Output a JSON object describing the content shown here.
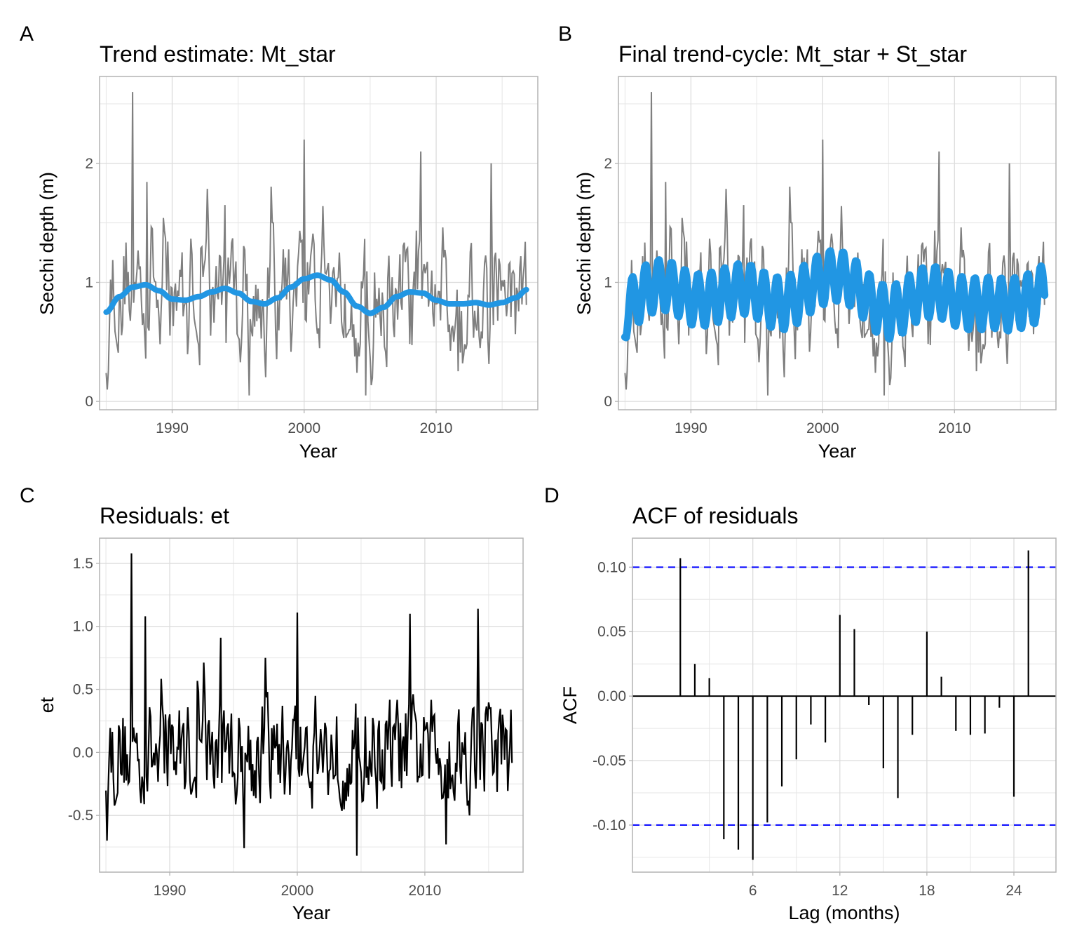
{
  "chart_data": [
    {
      "panel_tag": "A",
      "type": "line",
      "title": "Trend estimate: Mt_star",
      "xlabel": "Year",
      "ylabel": "Secchi depth (m)",
      "xlim": [
        1984.5,
        2017.7
      ],
      "ylim": [
        -0.07,
        2.73
      ],
      "xticks": [
        1990,
        2000,
        2010
      ],
      "xtick_labels": [
        "1990",
        "2000",
        "2010"
      ],
      "yticks": [
        0,
        1,
        2
      ],
      "ytick_labels": [
        "0",
        "1",
        "2"
      ],
      "grid": true,
      "series": [
        {
          "name": "observed",
          "color": "#7f7f7f",
          "x_start": 1985.0,
          "x_end": 2016.9,
          "description": "monthly Secchi depth, range ~0.05 to 2.6"
        },
        {
          "name": "Mt_star",
          "color": "#2196e3",
          "x": [
            1985.0,
            1986.0,
            1987.0,
            1988.0,
            1989.0,
            1990.0,
            1991.0,
            1992.0,
            1993.0,
            1994.0,
            1995.0,
            1996.0,
            1997.0,
            1998.0,
            1999.0,
            2000.0,
            2001.0,
            2002.0,
            2003.0,
            2004.0,
            2005.0,
            2006.0,
            2007.0,
            2008.0,
            2009.0,
            2010.0,
            2011.0,
            2012.0,
            2013.0,
            2014.0,
            2015.0,
            2016.0,
            2016.9
          ],
          "values": [
            0.75,
            0.88,
            0.96,
            0.98,
            0.93,
            0.86,
            0.85,
            0.88,
            0.92,
            0.95,
            0.91,
            0.84,
            0.82,
            0.87,
            0.96,
            1.03,
            1.06,
            1.02,
            0.92,
            0.8,
            0.74,
            0.79,
            0.88,
            0.92,
            0.91,
            0.85,
            0.82,
            0.82,
            0.83,
            0.81,
            0.83,
            0.87,
            0.94
          ]
        }
      ]
    },
    {
      "panel_tag": "B",
      "type": "line",
      "title": "Final trend-cycle: Mt_star + St_star",
      "xlabel": "Year",
      "ylabel": "Secchi depth (m)",
      "xlim": [
        1984.5,
        2017.7
      ],
      "ylim": [
        -0.07,
        2.73
      ],
      "xticks": [
        1990,
        2000,
        2010
      ],
      "xtick_labels": [
        "1990",
        "2000",
        "2010"
      ],
      "yticks": [
        0,
        1,
        2
      ],
      "ytick_labels": [
        "0",
        "1",
        "2"
      ],
      "grid": true,
      "series": [
        {
          "name": "observed",
          "color": "#7f7f7f",
          "x_start": 1985.0,
          "x_end": 2016.9
        },
        {
          "name": "Mt_star + St_star",
          "color": "#2196e3",
          "description": "trend plus annual seasonal cycle, amplitude ~0.22"
        }
      ]
    },
    {
      "panel_tag": "C",
      "type": "line",
      "title": "Residuals: et",
      "xlabel": "Year",
      "ylabel": "et",
      "xlim": [
        1984.5,
        2017.7
      ],
      "ylim": [
        -0.95,
        1.7
      ],
      "xticks": [
        1990,
        2000,
        2010
      ],
      "xtick_labels": [
        "1990",
        "2000",
        "2010"
      ],
      "yticks": [
        -0.5,
        0.0,
        0.5,
        1.0,
        1.5
      ],
      "ytick_labels": [
        "-0.5",
        "0.0",
        "0.5",
        "1.0",
        "1.5"
      ],
      "grid": true,
      "series": [
        {
          "name": "et",
          "color": "#000000",
          "x_start": 1985.0,
          "x_end": 2016.9,
          "description": "residuals, range ~-0.82 to 1.58",
          "notable_peaks": [
            [
              1987.0,
              1.58
            ],
            [
              1988.1,
              1.08
            ],
            [
              1994.0,
              0.91
            ],
            [
              2000.0,
              1.11
            ],
            [
              2008.8,
              1.1
            ],
            [
              2014.2,
              1.14
            ]
          ],
          "notable_troughs": [
            [
              1985.1,
              -0.7
            ],
            [
              1995.8,
              -0.76
            ],
            [
              2004.7,
              -0.82
            ],
            [
              2011.7,
              -0.73
            ]
          ]
        }
      ]
    },
    {
      "panel_tag": "D",
      "type": "bar",
      "title": "ACF of residuals",
      "xlabel": "Lag (months)",
      "ylabel": "ACF",
      "xlim": [
        -2.3,
        26.9
      ],
      "ylim": [
        -0.1365,
        0.1225
      ],
      "xticks": [
        6,
        12,
        18,
        24
      ],
      "xtick_labels": [
        "6",
        "12",
        "18",
        "24"
      ],
      "yticks": [
        -0.1,
        -0.05,
        0.0,
        0.05,
        0.1
      ],
      "ytick_labels": [
        "-0.10",
        "-0.05",
        "0.00",
        "0.05",
        "0.10"
      ],
      "grid": true,
      "lags": [
        1,
        2,
        3,
        4,
        5,
        6,
        7,
        8,
        9,
        10,
        11,
        12,
        13,
        14,
        15,
        16,
        17,
        18,
        19,
        20,
        21,
        22,
        23,
        24,
        25
      ],
      "values": [
        0.107,
        0.025,
        0.014,
        -0.111,
        -0.119,
        -0.127,
        -0.098,
        -0.07,
        -0.049,
        -0.022,
        -0.036,
        0.063,
        0.052,
        -0.007,
        -0.056,
        -0.079,
        -0.03,
        0.05,
        0.015,
        -0.027,
        -0.03,
        -0.029,
        -0.009,
        -0.078,
        0.113
      ],
      "confidence_bounds": [
        -0.1,
        0.1
      ],
      "bound_color": "#0000ff",
      "bar_color": "#000000"
    }
  ]
}
